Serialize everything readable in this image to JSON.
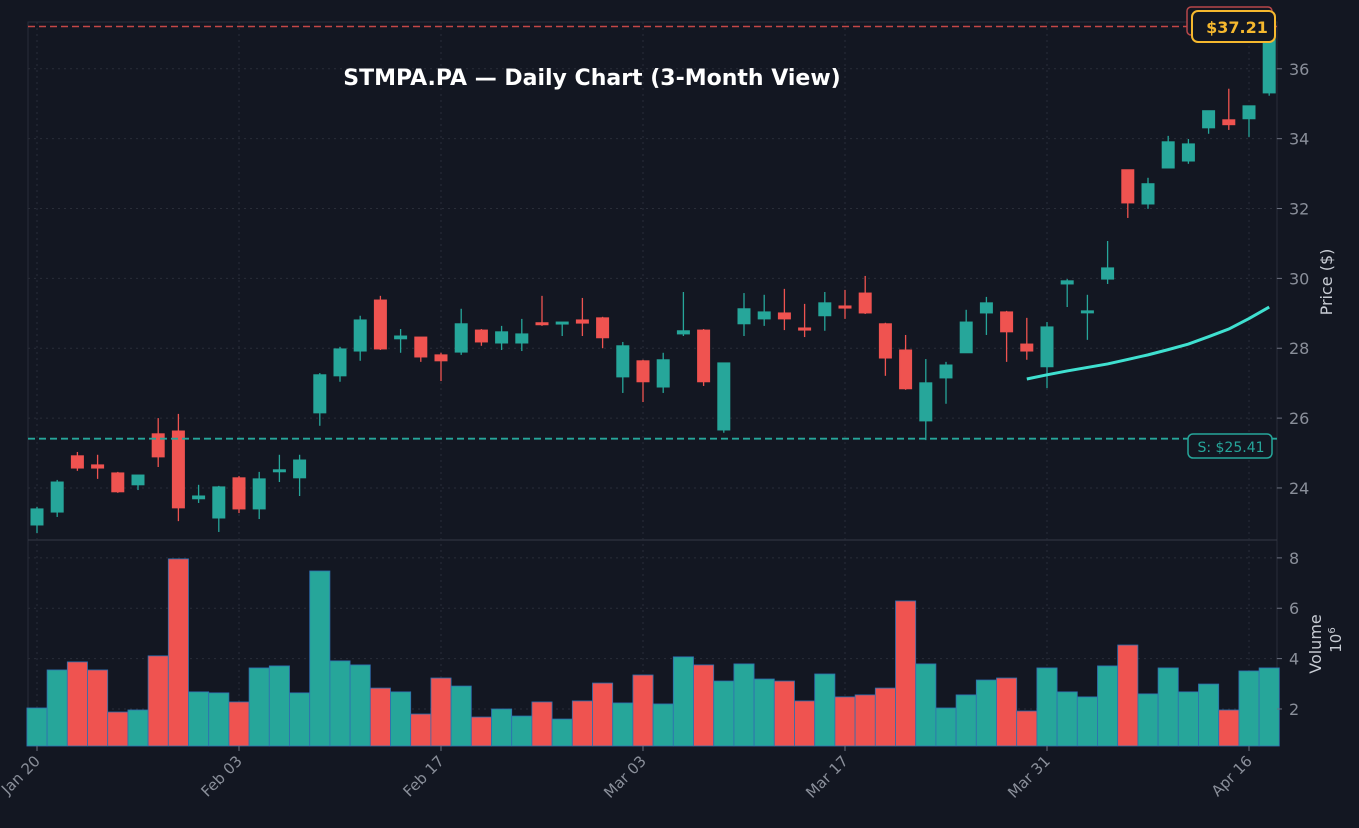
{
  "chart_data": {
    "type": "candlestick",
    "title": "STMPA.PA — Daily Chart (3-Month View)",
    "ylabel": "Price ($)",
    "volume_ylabel": "Volume",
    "volume_unit": "10^6",
    "ylim": [
      22.51,
      37.34
    ],
    "volume_ylim": [
      0.53,
      8.71
    ],
    "y_ticks": [
      24,
      26,
      28,
      30,
      32,
      34,
      36
    ],
    "volume_ticks": [
      2,
      4,
      6,
      8
    ],
    "x_ticks": [
      {
        "index": 0,
        "label": "Jan 20"
      },
      {
        "index": 10,
        "label": "Feb 03"
      },
      {
        "index": 20,
        "label": "Feb 17"
      },
      {
        "index": 30,
        "label": "Mar 03"
      },
      {
        "index": 40,
        "label": "Mar 17"
      },
      {
        "index": 50,
        "label": "Mar 31"
      },
      {
        "index": 60,
        "label": "Apr 16"
      }
    ],
    "grid": true,
    "colors": {
      "up": "#26a69a",
      "down": "#ef5350",
      "moving_average": "#3fe0d0",
      "resistance": "#ef5350",
      "support": "#26a69a",
      "last_price": "#f5b82e",
      "background": "#131722"
    },
    "ohlc": [
      [
        22.94,
        23.46,
        22.71,
        23.4
      ],
      [
        23.31,
        24.23,
        23.17,
        24.17
      ],
      [
        24.92,
        25.03,
        24.49,
        24.57
      ],
      [
        24.66,
        24.95,
        24.26,
        24.57
      ],
      [
        24.43,
        24.46,
        23.86,
        23.89
      ],
      [
        24.09,
        24.37,
        23.94,
        24.37
      ],
      [
        25.55,
        26.0,
        24.6,
        24.89
      ],
      [
        25.63,
        26.12,
        23.05,
        23.43
      ],
      [
        23.69,
        24.09,
        23.57,
        23.77
      ],
      [
        23.14,
        24.06,
        22.74,
        24.03
      ],
      [
        24.29,
        24.34,
        23.28,
        23.4
      ],
      [
        23.4,
        24.46,
        23.11,
        24.26
      ],
      [
        24.49,
        24.95,
        24.17,
        24.52
      ],
      [
        24.29,
        24.95,
        23.77,
        24.8
      ],
      [
        26.15,
        27.29,
        25.78,
        27.24
      ],
      [
        27.21,
        28.04,
        27.04,
        27.98
      ],
      [
        27.92,
        28.93,
        27.64,
        28.81
      ],
      [
        29.38,
        29.5,
        27.95,
        27.98
      ],
      [
        28.27,
        28.55,
        27.87,
        28.35
      ],
      [
        28.32,
        28.32,
        27.61,
        27.75
      ],
      [
        27.81,
        27.87,
        27.06,
        27.64
      ],
      [
        27.89,
        29.13,
        27.81,
        28.7
      ],
      [
        28.52,
        28.55,
        28.07,
        28.18
      ],
      [
        28.15,
        28.64,
        27.95,
        28.47
      ],
      [
        28.15,
        28.84,
        27.92,
        28.41
      ],
      [
        28.73,
        29.5,
        28.64,
        28.7
      ],
      [
        28.72,
        28.75,
        28.35,
        28.75
      ],
      [
        28.81,
        29.44,
        28.35,
        28.72
      ],
      [
        28.87,
        28.9,
        28.0,
        28.3
      ],
      [
        27.18,
        28.18,
        26.72,
        28.07
      ],
      [
        27.64,
        27.67,
        26.46,
        27.04
      ],
      [
        26.89,
        27.87,
        26.72,
        27.67
      ],
      [
        28.41,
        29.61,
        28.35,
        28.5
      ],
      [
        28.52,
        28.55,
        26.92,
        27.04
      ],
      [
        25.66,
        27.58,
        25.58,
        27.58
      ],
      [
        28.7,
        29.58,
        28.35,
        29.13
      ],
      [
        28.84,
        29.53,
        28.64,
        29.04
      ],
      [
        29.01,
        29.7,
        28.52,
        28.84
      ],
      [
        28.58,
        29.27,
        28.32,
        28.52
      ],
      [
        28.93,
        29.61,
        28.5,
        29.3
      ],
      [
        29.21,
        29.67,
        28.84,
        29.15
      ],
      [
        29.58,
        30.07,
        28.98,
        29.01
      ],
      [
        28.7,
        28.73,
        27.21,
        27.72
      ],
      [
        27.95,
        28.38,
        26.81,
        26.84
      ],
      [
        25.92,
        27.69,
        25.37,
        27.01
      ],
      [
        27.15,
        27.61,
        26.41,
        27.52
      ],
      [
        27.87,
        29.1,
        27.87,
        28.75
      ],
      [
        29.01,
        29.47,
        28.38,
        29.3
      ],
      [
        29.04,
        29.07,
        27.61,
        28.47
      ],
      [
        28.12,
        28.87,
        27.67,
        27.92
      ],
      [
        27.47,
        28.75,
        26.86,
        28.61
      ],
      [
        29.84,
        29.98,
        29.18,
        29.93
      ],
      [
        29.04,
        29.53,
        28.24,
        29.07
      ],
      [
        29.98,
        31.07,
        29.84,
        30.3
      ],
      [
        33.11,
        33.11,
        31.73,
        32.16
      ],
      [
        32.13,
        32.88,
        31.99,
        32.71
      ],
      [
        33.16,
        34.08,
        33.16,
        33.91
      ],
      [
        33.36,
        33.99,
        33.28,
        33.85
      ],
      [
        34.31,
        34.8,
        34.14,
        34.8
      ],
      [
        34.54,
        35.43,
        34.25,
        34.4
      ],
      [
        34.57,
        34.94,
        34.05,
        34.94
      ],
      [
        35.31,
        37.21,
        35.23,
        37.21
      ]
    ],
    "volume": [
      2.04,
      3.55,
      3.87,
      3.55,
      1.88,
      1.96,
      4.11,
      7.96,
      2.68,
      2.64,
      2.28,
      3.63,
      3.71,
      2.64,
      7.48,
      3.91,
      3.75,
      2.83,
      2.68,
      1.8,
      3.23,
      2.91,
      1.68,
      2.0,
      1.72,
      2.28,
      1.6,
      2.32,
      3.03,
      2.24,
      3.35,
      2.2,
      4.07,
      3.75,
      3.11,
      3.79,
      3.19,
      3.11,
      2.32,
      3.39,
      2.48,
      2.56,
      2.83,
      6.29,
      3.79,
      2.04,
      2.56,
      3.15,
      3.23,
      1.92,
      3.63,
      2.68,
      2.48,
      3.71,
      4.54,
      2.6,
      3.63,
      2.68,
      2.99,
      1.96,
      3.51,
      3.63
    ],
    "moving_average": {
      "start_index": 49,
      "values": [
        27.12,
        27.24,
        27.35,
        27.45,
        27.55,
        27.68,
        27.81,
        27.96,
        28.12,
        28.33,
        28.55,
        28.85,
        29.18
      ]
    },
    "resistance": 37.21,
    "support": 25.41,
    "last_price": 37.21,
    "last_price_label": "$37.21",
    "support_label": "S: $25.41"
  }
}
